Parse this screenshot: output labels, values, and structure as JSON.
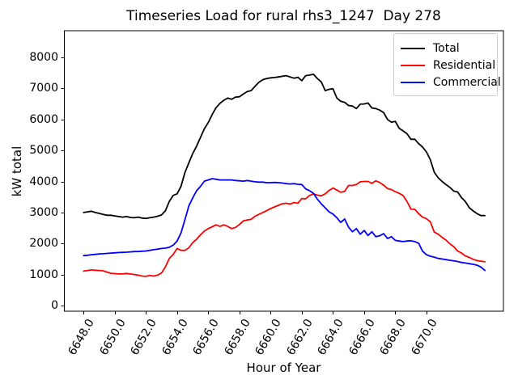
{
  "title": "Timeseries Load for rural rhs3_1247  Day 278",
  "axes": {
    "xlabel": "Hour of Year",
    "ylabel": "kW total"
  },
  "colors": {
    "total": "#000000",
    "residential": "#ff0000",
    "commercial": "#0000ff",
    "axes_edge": "#000000",
    "legend_border": "#cccccc",
    "background": "#ffffff"
  },
  "legend": {
    "items": [
      {
        "label": "Total",
        "color": "#000000"
      },
      {
        "label": "Residential",
        "color": "#ff0000"
      },
      {
        "label": "Commercial",
        "color": "#0000ff"
      }
    ]
  },
  "chart_data": {
    "type": "line",
    "title": "Timeseries Load for rural rhs3_1247  Day 278",
    "xlabel": "Hour of Year",
    "ylabel": "kW total",
    "grid": false,
    "legend_position": "upper right",
    "xlim": [
      6646.75,
      6674.95
    ],
    "ylim": [
      -182,
      8860
    ],
    "x_tick_values": [
      6648,
      6650,
      6652,
      6654,
      6656,
      6658,
      6660,
      6662,
      6664,
      6666,
      6668,
      6670
    ],
    "x_tick_labels": [
      "6648.0",
      "6650.0",
      "6652.0",
      "6654.0",
      "6656.0",
      "6658.0",
      "6660.0",
      "6662.0",
      "6664.0",
      "6666.0",
      "6668.0",
      "6670.0"
    ],
    "y_tick_values": [
      0,
      1000,
      2000,
      3000,
      4000,
      5000,
      6000,
      7000,
      8000
    ],
    "y_tick_labels": [
      "0",
      "1000",
      "2000",
      "3000",
      "4000",
      "5000",
      "6000",
      "7000",
      "8000"
    ],
    "x": [
      6648.0,
      6648.25,
      6648.5,
      6648.75,
      6649.0,
      6649.25,
      6649.5,
      6649.75,
      6650.0,
      6650.25,
      6650.5,
      6650.75,
      6651.0,
      6651.25,
      6651.5,
      6651.75,
      6652.0,
      6652.25,
      6652.5,
      6652.75,
      6653.0,
      6653.25,
      6653.5,
      6653.75,
      6654.0,
      6654.25,
      6654.5,
      6654.75,
      6655.0,
      6655.25,
      6655.5,
      6655.75,
      6656.0,
      6656.25,
      6656.5,
      6656.75,
      6657.0,
      6657.25,
      6657.5,
      6657.75,
      6658.0,
      6658.25,
      6658.5,
      6658.75,
      6659.0,
      6659.25,
      6659.5,
      6659.75,
      6660.0,
      6660.25,
      6660.5,
      6660.75,
      6661.0,
      6661.25,
      6661.5,
      6661.75,
      6662.0,
      6662.25,
      6662.5,
      6662.75,
      6663.0,
      6663.25,
      6663.5,
      6663.75,
      6664.0,
      6664.25,
      6664.5,
      6664.75,
      6665.0,
      6665.25,
      6665.5,
      6665.75,
      6666.0,
      6666.25,
      6666.5,
      6666.75,
      6667.0,
      6667.25,
      6667.5,
      6667.75,
      6668.0,
      6668.25,
      6668.5,
      6668.75,
      6669.0,
      6669.25,
      6669.5,
      6669.75,
      6670.0,
      6670.25,
      6670.5,
      6670.75,
      6671.0,
      6671.25,
      6671.5,
      6671.75,
      6672.0,
      6672.25,
      6672.5,
      6672.75,
      6673.0,
      6673.25,
      6673.5,
      6673.75
    ],
    "series": [
      {
        "name": "Total",
        "color": "#000000",
        "values": [
          3000,
          3020,
          3040,
          3000,
          2970,
          2940,
          2910,
          2910,
          2890,
          2870,
          2850,
          2870,
          2840,
          2830,
          2850,
          2820,
          2810,
          2830,
          2850,
          2880,
          2920,
          3060,
          3360,
          3550,
          3600,
          3840,
          4290,
          4600,
          4900,
          5140,
          5420,
          5700,
          5900,
          6160,
          6380,
          6520,
          6620,
          6690,
          6650,
          6720,
          6730,
          6820,
          6900,
          6930,
          7070,
          7200,
          7280,
          7320,
          7340,
          7350,
          7370,
          7390,
          7410,
          7370,
          7330,
          7360,
          7250,
          7410,
          7430,
          7455,
          7320,
          7210,
          6930,
          6970,
          6990,
          6690,
          6585,
          6550,
          6450,
          6430,
          6350,
          6490,
          6500,
          6530,
          6370,
          6350,
          6300,
          6220,
          6000,
          5910,
          5940,
          5715,
          5630,
          5540,
          5360,
          5360,
          5220,
          5110,
          4950,
          4700,
          4300,
          4120,
          4000,
          3900,
          3810,
          3690,
          3660,
          3480,
          3350,
          3150,
          3050,
          2960,
          2900,
          2900
        ]
      },
      {
        "name": "Residential",
        "color": "#ff0000",
        "values": [
          1110,
          1130,
          1150,
          1140,
          1130,
          1120,
          1080,
          1040,
          1030,
          1020,
          1020,
          1035,
          1020,
          1000,
          980,
          950,
          940,
          970,
          950,
          980,
          1050,
          1250,
          1520,
          1650,
          1840,
          1780,
          1780,
          1860,
          2030,
          2140,
          2280,
          2400,
          2480,
          2540,
          2600,
          2550,
          2600,
          2550,
          2480,
          2520,
          2610,
          2730,
          2760,
          2780,
          2880,
          2940,
          3000,
          3060,
          3130,
          3180,
          3230,
          3280,
          3300,
          3270,
          3320,
          3300,
          3450,
          3440,
          3550,
          3600,
          3560,
          3540,
          3600,
          3710,
          3790,
          3720,
          3650,
          3680,
          3870,
          3870,
          3900,
          3990,
          4000,
          4000,
          3940,
          4020,
          3970,
          3880,
          3770,
          3740,
          3670,
          3620,
          3550,
          3360,
          3110,
          3100,
          2960,
          2850,
          2800,
          2700,
          2370,
          2300,
          2200,
          2110,
          1990,
          1900,
          1760,
          1690,
          1600,
          1550,
          1490,
          1450,
          1430,
          1410
        ]
      },
      {
        "name": "Commercial",
        "color": "#0000ff",
        "values": [
          1610,
          1620,
          1640,
          1650,
          1665,
          1670,
          1680,
          1690,
          1700,
          1710,
          1715,
          1720,
          1730,
          1740,
          1740,
          1750,
          1760,
          1780,
          1800,
          1820,
          1840,
          1850,
          1880,
          1950,
          2080,
          2340,
          2770,
          3210,
          3470,
          3700,
          3840,
          4010,
          4050,
          4090,
          4070,
          4050,
          4050,
          4050,
          4050,
          4030,
          4020,
          4010,
          4030,
          4010,
          3990,
          3980,
          3980,
          3960,
          3960,
          3970,
          3960,
          3950,
          3930,
          3920,
          3930,
          3910,
          3900,
          3760,
          3700,
          3620,
          3430,
          3280,
          3150,
          3020,
          2950,
          2830,
          2680,
          2790,
          2530,
          2380,
          2480,
          2300,
          2420,
          2260,
          2380,
          2220,
          2250,
          2320,
          2160,
          2220,
          2100,
          2080,
          2060,
          2080,
          2090,
          2060,
          2010,
          1750,
          1640,
          1590,
          1560,
          1520,
          1500,
          1480,
          1460,
          1440,
          1420,
          1390,
          1370,
          1350,
          1330,
          1300,
          1240,
          1130
        ]
      }
    ]
  }
}
